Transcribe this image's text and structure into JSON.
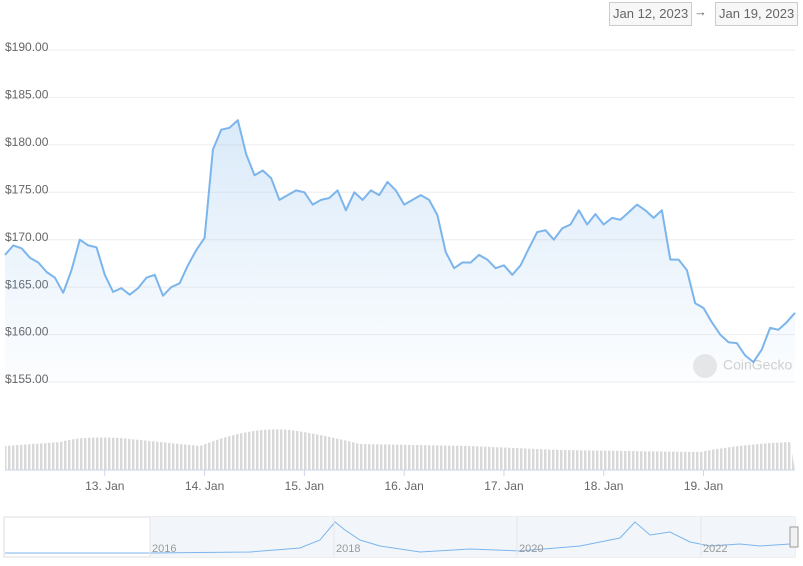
{
  "chart_data": {
    "type": "line",
    "range_from": "Jan 12, 2023",
    "range_to": "Jan 19, 2023",
    "watermark": "CoinGecko",
    "color": "#7cb5ec",
    "grid": true,
    "ylim": [
      155,
      190
    ],
    "yticks": [
      {
        "value": 155,
        "label": "$155.00"
      },
      {
        "value": 160,
        "label": "$160.00"
      },
      {
        "value": 165,
        "label": "$165.00"
      },
      {
        "value": 170,
        "label": "$170.00"
      },
      {
        "value": 175,
        "label": "$175.00"
      },
      {
        "value": 180,
        "label": "$180.00"
      },
      {
        "value": 185,
        "label": "$185.00"
      },
      {
        "value": 190,
        "label": "$190.00"
      }
    ],
    "categories": [
      null,
      null,
      null,
      null,
      null,
      null,
      null,
      null,
      null,
      null,
      null,
      null,
      "13. Jan",
      null,
      null,
      null,
      null,
      null,
      null,
      null,
      null,
      null,
      null,
      null,
      "14. Jan",
      null,
      null,
      null,
      null,
      null,
      null,
      null,
      null,
      null,
      null,
      null,
      "15. Jan",
      null,
      null,
      null,
      null,
      null,
      null,
      null,
      null,
      null,
      null,
      null,
      "16. Jan",
      null,
      null,
      null,
      null,
      null,
      null,
      null,
      null,
      null,
      null,
      null,
      "17. Jan",
      null,
      null,
      null,
      null,
      null,
      null,
      null,
      null,
      null,
      null,
      null,
      "18. Jan",
      null,
      null,
      null,
      null,
      null,
      null,
      null,
      null,
      null,
      null,
      null,
      "19. Jan",
      null,
      null,
      null,
      null,
      null,
      null,
      null,
      null,
      null,
      null,
      null
    ],
    "values": [
      168.4,
      169.4,
      169.1,
      168.1,
      167.6,
      166.6,
      166.0,
      164.4,
      166.8,
      170.0,
      169.4,
      169.2,
      166.3,
      164.5,
      164.9,
      164.2,
      164.9,
      166.0,
      166.3,
      164.1,
      165.0,
      165.4,
      167.3,
      168.9,
      170.2,
      179.5,
      181.6,
      181.8,
      182.6,
      179.0,
      176.8,
      177.3,
      176.5,
      174.2,
      174.7,
      175.2,
      175.0,
      173.7,
      174.2,
      174.4,
      175.2,
      173.1,
      175.0,
      174.2,
      175.2,
      174.7,
      176.1,
      175.2,
      173.7,
      174.2,
      174.7,
      174.2,
      172.6,
      168.7,
      167.0,
      167.6,
      167.6,
      168.4,
      167.9,
      167.0,
      167.3,
      166.3,
      167.3,
      169.1,
      170.8,
      171.0,
      170.0,
      171.2,
      171.6,
      173.1,
      171.6,
      172.7,
      171.6,
      172.3,
      172.1,
      172.9,
      173.7,
      173.1,
      172.3,
      173.1,
      167.9,
      167.9,
      166.8,
      163.3,
      162.8,
      161.3,
      160.0,
      159.2,
      159.1,
      157.8,
      157.1,
      158.4,
      160.7,
      160.5,
      161.3,
      162.3
    ],
    "navigator_labels": [
      "2016",
      "2018",
      "2020",
      "2022"
    ]
  }
}
